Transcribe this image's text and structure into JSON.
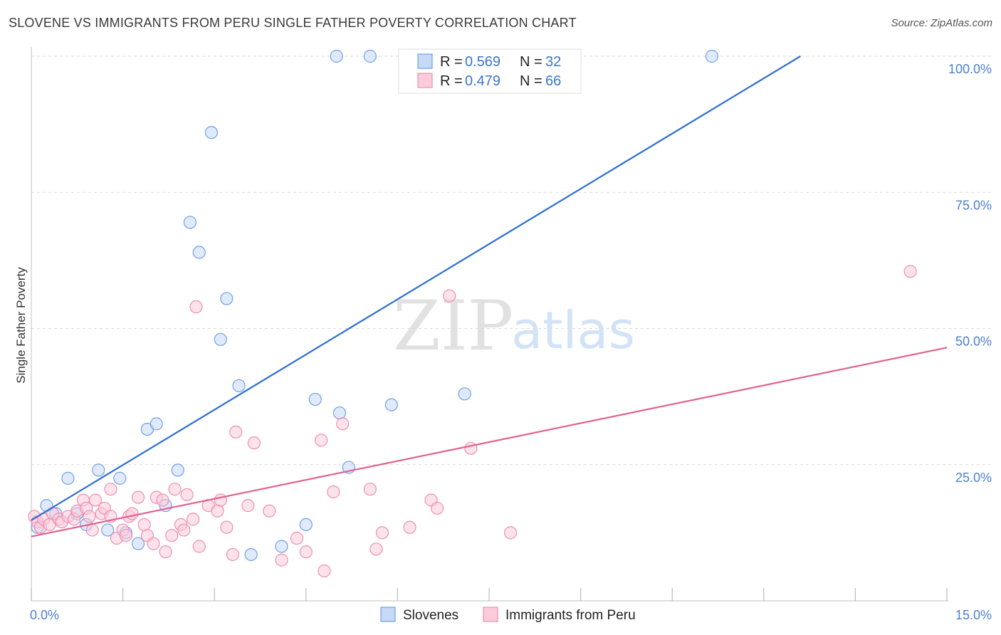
{
  "header": {
    "title": "SLOVENE VS IMMIGRANTS FROM PERU SINGLE FATHER POVERTY CORRELATION CHART",
    "source": "Source: ZipAtlas.com"
  },
  "watermark": {
    "zip": "ZIP",
    "atlas": "atlas"
  },
  "legend": {
    "r_label": "R =",
    "n_label": "N =",
    "entries": [
      {
        "r": "0.569",
        "n": "32",
        "color": "#6fa0e8",
        "fill": "#c6d9f5"
      },
      {
        "r": "0.479",
        "n": "66",
        "color": "#ef8fb0",
        "fill": "#f9cbdb"
      }
    ]
  },
  "chart_data": {
    "type": "scatter",
    "title": "SLOVENE VS IMMIGRANTS FROM PERU SINGLE FATHER POVERTY CORRELATION CHART",
    "xlabel": "",
    "ylabel": "Single Father Poverty",
    "xlim": [
      0,
      15
    ],
    "ylim": [
      0,
      100
    ],
    "x_ticks": [
      {
        "value": 0,
        "label": "0.0%"
      },
      {
        "value": 15,
        "label": "15.0%"
      }
    ],
    "y_ticks": [
      {
        "value": 25,
        "label": "25.0%"
      },
      {
        "value": 50,
        "label": "50.0%"
      },
      {
        "value": 75,
        "label": "75.0%"
      },
      {
        "value": 100,
        "label": "100.0%"
      }
    ],
    "grid": true,
    "legend_position": "top-center",
    "series": [
      {
        "name": "Slovenes",
        "color": "#6fa0e8",
        "fill": "#c6d9f5",
        "line_color": "#2d6fd1",
        "trend": {
          "x": [
            0,
            12.6
          ],
          "y": [
            14.8,
            100
          ]
        },
        "points": [
          [
            0.1,
            13.5
          ],
          [
            0.25,
            17.5
          ],
          [
            0.4,
            16
          ],
          [
            0.6,
            22.5
          ],
          [
            0.75,
            16
          ],
          [
            0.9,
            14
          ],
          [
            1.1,
            24
          ],
          [
            1.25,
            13
          ],
          [
            1.45,
            22.5
          ],
          [
            1.55,
            12.5
          ],
          [
            1.75,
            10.5
          ],
          [
            1.9,
            31.5
          ],
          [
            2.05,
            32.5
          ],
          [
            2.2,
            17.5
          ],
          [
            2.4,
            24
          ],
          [
            2.6,
            69.5
          ],
          [
            2.75,
            64
          ],
          [
            2.95,
            86
          ],
          [
            3.1,
            48
          ],
          [
            3.2,
            55.5
          ],
          [
            3.4,
            39.5
          ],
          [
            3.6,
            8.5
          ],
          [
            4.1,
            10
          ],
          [
            4.5,
            14
          ],
          [
            4.65,
            37
          ],
          [
            5.0,
            100
          ],
          [
            5.05,
            34.5
          ],
          [
            5.2,
            24.5
          ],
          [
            5.55,
            100
          ],
          [
            5.9,
            36
          ],
          [
            7.1,
            38
          ],
          [
            11.15,
            100
          ]
        ]
      },
      {
        "name": "Immigrants from Peru",
        "color": "#ef8fb0",
        "fill": "#f9cbdb",
        "line_color": "#e0628f",
        "trend": {
          "x": [
            0,
            15
          ],
          "y": [
            11.8,
            46.5
          ]
        },
        "points": [
          [
            0.05,
            15.5
          ],
          [
            0.1,
            14.5
          ],
          [
            0.15,
            13.5
          ],
          [
            0.2,
            15
          ],
          [
            0.3,
            14
          ],
          [
            0.35,
            16
          ],
          [
            0.45,
            15
          ],
          [
            0.5,
            14.5
          ],
          [
            0.6,
            15.5
          ],
          [
            0.7,
            15
          ],
          [
            0.75,
            16.5
          ],
          [
            0.85,
            18.5
          ],
          [
            0.9,
            17
          ],
          [
            0.95,
            15.5
          ],
          [
            1.0,
            13
          ],
          [
            1.05,
            18.5
          ],
          [
            1.15,
            16
          ],
          [
            1.2,
            17
          ],
          [
            1.3,
            15.5
          ],
          [
            1.3,
            20.5
          ],
          [
            1.4,
            11.5
          ],
          [
            1.5,
            13
          ],
          [
            1.55,
            12
          ],
          [
            1.6,
            15.5
          ],
          [
            1.65,
            16
          ],
          [
            1.75,
            19
          ],
          [
            1.85,
            14
          ],
          [
            1.9,
            12
          ],
          [
            2.0,
            10.5
          ],
          [
            2.05,
            19
          ],
          [
            2.15,
            18.5
          ],
          [
            2.2,
            9
          ],
          [
            2.3,
            12
          ],
          [
            2.35,
            20.5
          ],
          [
            2.45,
            14
          ],
          [
            2.5,
            13
          ],
          [
            2.55,
            19.5
          ],
          [
            2.65,
            15
          ],
          [
            2.7,
            54
          ],
          [
            2.75,
            10
          ],
          [
            2.9,
            17.5
          ],
          [
            3.05,
            16.5
          ],
          [
            3.1,
            18.5
          ],
          [
            3.2,
            13.5
          ],
          [
            3.3,
            8.5
          ],
          [
            3.35,
            31
          ],
          [
            3.55,
            17.5
          ],
          [
            3.65,
            29
          ],
          [
            3.9,
            16.5
          ],
          [
            4.1,
            7.5
          ],
          [
            4.35,
            11.5
          ],
          [
            4.5,
            9
          ],
          [
            4.75,
            29.5
          ],
          [
            4.8,
            5.5
          ],
          [
            4.95,
            20
          ],
          [
            5.1,
            32.5
          ],
          [
            5.55,
            20.5
          ],
          [
            5.65,
            9.5
          ],
          [
            5.75,
            12.5
          ],
          [
            6.2,
            13.5
          ],
          [
            6.55,
            18.5
          ],
          [
            6.65,
            17
          ],
          [
            6.85,
            56
          ],
          [
            7.2,
            28
          ],
          [
            7.85,
            12.5
          ],
          [
            14.4,
            60.5
          ]
        ]
      }
    ]
  }
}
